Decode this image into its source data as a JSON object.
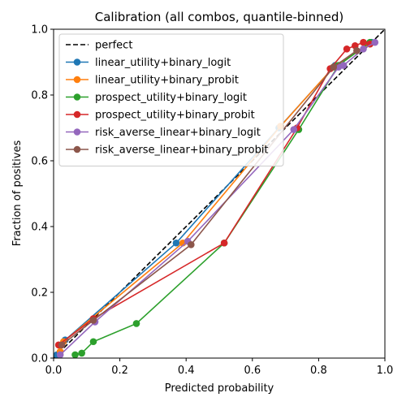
{
  "chart_data": {
    "type": "line",
    "title": "Calibration (all combos, quantile-binned)",
    "xlabel": "Predicted probability",
    "ylabel": "Fraction of positives",
    "xlim": [
      0,
      1
    ],
    "ylim": [
      0,
      1
    ],
    "xticks": [
      "0.0",
      "0.2",
      "0.4",
      "0.6",
      "0.8",
      "1.0"
    ],
    "yticks": [
      "0.0",
      "0.2",
      "0.4",
      "0.6",
      "0.8",
      "1.0"
    ],
    "grid": false,
    "legend_position": "top-left",
    "reference_line": {
      "name": "perfect",
      "color": "#000000",
      "dash": true,
      "x": [
        0,
        1
      ],
      "y": [
        0,
        1
      ]
    },
    "series": [
      {
        "name": "linear_utility+binary_logit",
        "color": "#1f77b4",
        "x": [
          0.01,
          0.035,
          0.37,
          0.68,
          0.85,
          0.96
        ],
        "y": [
          0.01,
          0.055,
          0.35,
          0.7,
          0.89,
          0.96
        ]
      },
      {
        "name": "linear_utility+binary_probit",
        "color": "#ff7f0e",
        "x": [
          0.02,
          0.03,
          0.39,
          0.685,
          0.845,
          0.955
        ],
        "y": [
          0.02,
          0.05,
          0.35,
          0.705,
          0.885,
          0.955
        ]
      },
      {
        "name": "prospect_utility+binary_logit",
        "color": "#2ca02c",
        "x": [
          0.065,
          0.085,
          0.12,
          0.25,
          0.515,
          0.74,
          0.86,
          0.955
        ],
        "y": [
          0.01,
          0.015,
          0.05,
          0.105,
          0.35,
          0.695,
          0.89,
          0.96
        ]
      },
      {
        "name": "prospect_utility+binary_probit",
        "color": "#d62728",
        "x": [
          0.015,
          0.12,
          0.515,
          0.735,
          0.835,
          0.885,
          0.91,
          0.935,
          0.955
        ],
        "y": [
          0.04,
          0.12,
          0.35,
          0.7,
          0.88,
          0.94,
          0.95,
          0.96,
          0.955
        ]
      },
      {
        "name": "risk_averse_linear+binary_logit",
        "color": "#9467bd",
        "x": [
          0.02,
          0.125,
          0.405,
          0.725,
          0.86,
          0.875,
          0.935,
          0.97
        ],
        "y": [
          0.01,
          0.11,
          0.355,
          0.695,
          0.885,
          0.89,
          0.94,
          0.96
        ]
      },
      {
        "name": "risk_averse_linear+binary_probit",
        "color": "#8c564b",
        "x": [
          0.025,
          0.12,
          0.415,
          0.845,
          0.915
        ],
        "y": [
          0.04,
          0.115,
          0.345,
          0.885,
          0.935
        ]
      }
    ]
  }
}
